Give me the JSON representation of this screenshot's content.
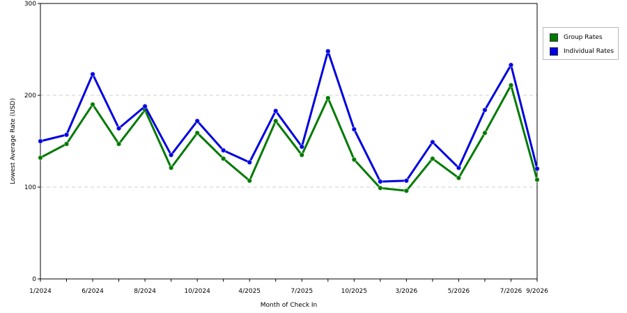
{
  "chart_data": {
    "type": "line",
    "xlabel": "Month of Check In",
    "ylabel": "Lowest Average Rate (USD)",
    "ylim": [
      0,
      300
    ],
    "yticks": [
      0,
      100,
      200,
      300
    ],
    "grid": "horizontal dashed",
    "legend_position": "right",
    "x_points": 20,
    "x_tick_labels": [
      {
        "index": 0,
        "label": "1/2024"
      },
      {
        "index": 2,
        "label": "6/2024"
      },
      {
        "index": 4,
        "label": "8/2024"
      },
      {
        "index": 6,
        "label": "10/2024"
      },
      {
        "index": 8,
        "label": "4/2025"
      },
      {
        "index": 10,
        "label": "7/2025"
      },
      {
        "index": 12,
        "label": "10/2025"
      },
      {
        "index": 14,
        "label": "3/2026"
      },
      {
        "index": 16,
        "label": "5/2026"
      },
      {
        "index": 18,
        "label": "7/2026"
      },
      {
        "index": 19,
        "label": "9/2026"
      }
    ],
    "series": [
      {
        "name": "Group Rates",
        "color": "#007a00",
        "values": [
          132,
          147,
          190,
          147,
          184,
          121,
          159,
          131,
          107,
          172,
          135,
          197,
          130,
          99,
          96,
          131,
          110,
          159,
          211,
          108
        ]
      },
      {
        "name": "Individual Rates",
        "color": "#0000e0",
        "values": [
          150,
          157,
          223,
          164,
          188,
          135,
          172,
          140,
          127,
          183,
          144,
          248,
          163,
          106,
          107,
          149,
          121,
          184,
          233,
          120
        ]
      }
    ]
  }
}
